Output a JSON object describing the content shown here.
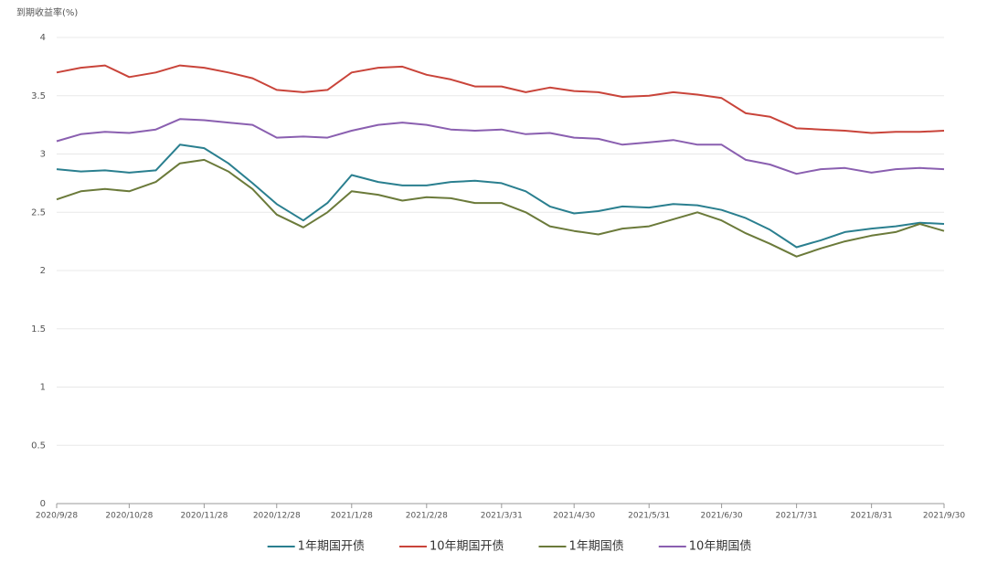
{
  "chart_data": {
    "type": "line",
    "y_label": "到期收益率(%)",
    "x": [
      "2020/9/28",
      "2020/10/8",
      "2020/10/18",
      "2020/10/28",
      "2020/11/8",
      "2020/11/18",
      "2020/11/28",
      "2020/12/8",
      "2020/12/18",
      "2020/12/28",
      "2021/1/8",
      "2021/1/18",
      "2021/1/28",
      "2021/2/8",
      "2021/2/18",
      "2021/2/28",
      "2021/3/10",
      "2021/3/20",
      "2021/3/31",
      "2021/4/10",
      "2021/4/20",
      "2021/4/30",
      "2021/5/10",
      "2021/5/20",
      "2021/5/31",
      "2021/6/10",
      "2021/6/20",
      "2021/6/30",
      "2021/7/10",
      "2021/7/20",
      "2021/7/31",
      "2021/8/10",
      "2021/8/20",
      "2021/8/31",
      "2021/9/10",
      "2021/9/20",
      "2021/9/30"
    ],
    "xticks": [
      "2020/9/28",
      "2020/10/28",
      "2020/11/28",
      "2020/12/28",
      "2021/1/28",
      "2021/2/28",
      "2021/3/31",
      "2021/4/30",
      "2021/5/31",
      "2021/6/30",
      "2021/7/31",
      "2021/8/31",
      "2021/9/30"
    ],
    "ylim": [
      0,
      4
    ],
    "yticks": [
      0,
      0.5,
      1,
      1.5,
      2,
      2.5,
      3,
      3.5,
      4
    ],
    "grid": true,
    "series": [
      {
        "name": "1年期国开债",
        "color": "#2a7f8f",
        "values": [
          2.87,
          2.85,
          2.86,
          2.84,
          2.86,
          3.08,
          3.05,
          2.92,
          2.75,
          2.57,
          2.43,
          2.58,
          2.82,
          2.76,
          2.73,
          2.73,
          2.76,
          2.77,
          2.75,
          2.68,
          2.55,
          2.49,
          2.51,
          2.55,
          2.54,
          2.57,
          2.56,
          2.52,
          2.45,
          2.35,
          2.2,
          2.26,
          2.33,
          2.36,
          2.38,
          2.41,
          2.4
        ]
      },
      {
        "name": "10年期国开债",
        "color": "#c9443a",
        "values": [
          3.7,
          3.74,
          3.76,
          3.66,
          3.7,
          3.76,
          3.74,
          3.7,
          3.65,
          3.55,
          3.53,
          3.55,
          3.7,
          3.74,
          3.75,
          3.68,
          3.64,
          3.58,
          3.58,
          3.53,
          3.57,
          3.54,
          3.53,
          3.49,
          3.5,
          3.53,
          3.51,
          3.48,
          3.35,
          3.32,
          3.22,
          3.21,
          3.2,
          3.18,
          3.19,
          3.19,
          3.2
        ]
      },
      {
        "name": "1年期国债",
        "color": "#6b7a3a",
        "values": [
          2.61,
          2.68,
          2.7,
          2.68,
          2.76,
          2.92,
          2.95,
          2.85,
          2.7,
          2.48,
          2.37,
          2.5,
          2.68,
          2.65,
          2.6,
          2.63,
          2.62,
          2.58,
          2.58,
          2.5,
          2.38,
          2.34,
          2.31,
          2.36,
          2.38,
          2.44,
          2.5,
          2.43,
          2.32,
          2.23,
          2.12,
          2.19,
          2.25,
          2.3,
          2.33,
          2.4,
          2.34
        ]
      },
      {
        "name": "10年期国债",
        "color": "#8a5fb0",
        "values": [
          3.11,
          3.17,
          3.19,
          3.18,
          3.21,
          3.3,
          3.29,
          3.27,
          3.25,
          3.14,
          3.15,
          3.14,
          3.2,
          3.25,
          3.27,
          3.25,
          3.21,
          3.2,
          3.21,
          3.17,
          3.18,
          3.14,
          3.13,
          3.08,
          3.1,
          3.12,
          3.08,
          3.08,
          2.95,
          2.91,
          2.83,
          2.87,
          2.88,
          2.84,
          2.87,
          2.88,
          2.87
        ]
      }
    ]
  }
}
